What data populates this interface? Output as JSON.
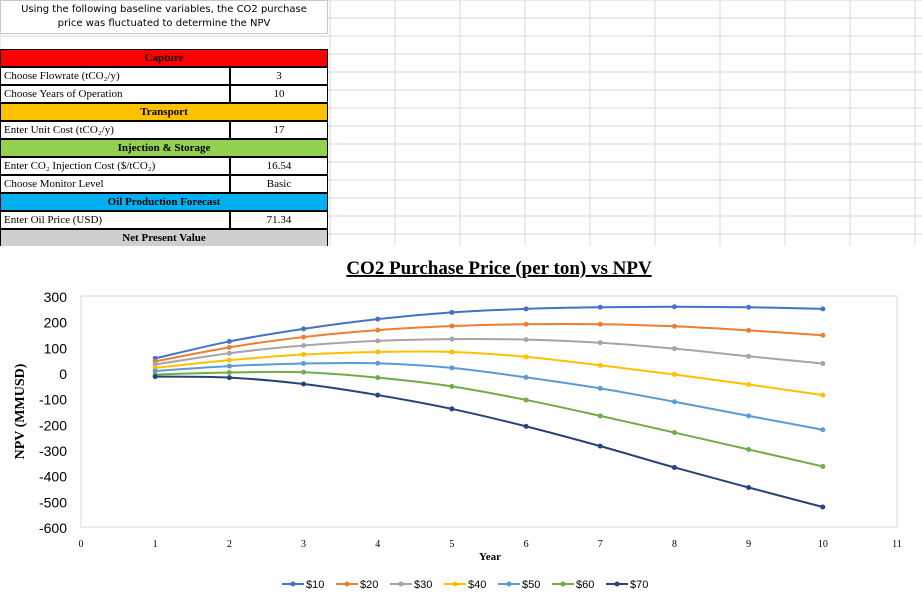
{
  "note": {
    "line1": "Using the following baseline variables, the CO2 purchase",
    "line2": "price was fluctuated to determine the NPV"
  },
  "table": {
    "capture": {
      "header": "Capture",
      "color": "#ff0000",
      "rows": [
        {
          "label": "Choose Flowrate (tCO₂/y)",
          "value": "3"
        },
        {
          "label": "Choose Years of Operation",
          "value": "10"
        }
      ]
    },
    "transport": {
      "header": "Transport",
      "color": "#ffc000",
      "rows": [
        {
          "label": "Enter Unit Cost (tCO₂/y)",
          "value": "17"
        }
      ]
    },
    "injection": {
      "header": "Injection & Storage",
      "color": "#92d050",
      "rows": [
        {
          "label": "Enter CO₂ Injection Cost ($/tCO₂)",
          "value": "16.54"
        },
        {
          "label": "Choose Monitor Level",
          "value": "Basic"
        }
      ]
    },
    "oil": {
      "header": "Oil Production Forecast",
      "color": "#00b0f0",
      "rows": [
        {
          "label": "Enter Oil Price (USD)",
          "value": "71.34"
        }
      ]
    },
    "npv": {
      "header": "Net Present Value",
      "color": "#d0cece"
    }
  },
  "chart_data": {
    "type": "line",
    "title": "CO2 Purchase Price (per ton) vs NPV",
    "xlabel": "Year",
    "ylabel": "NPV (MMUSD)",
    "xlim": [
      0,
      11
    ],
    "ylim": [
      -600,
      300
    ],
    "xticks": [
      0,
      1,
      2,
      3,
      4,
      5,
      6,
      7,
      8,
      9,
      10,
      11
    ],
    "yticks": [
      300,
      200,
      100,
      0,
      -100,
      -200,
      -300,
      -400,
      -500,
      -600
    ],
    "legend_position": "bottom",
    "x": [
      1,
      2,
      3,
      4,
      5,
      6,
      7,
      8,
      9,
      10
    ],
    "series": [
      {
        "name": "$10",
        "color": "#4472c4",
        "values": [
          57,
          123,
          172,
          210,
          236,
          250,
          256,
          258,
          256,
          250
        ]
      },
      {
        "name": "$20",
        "color": "#ed7d31",
        "values": [
          45,
          100,
          140,
          167,
          183,
          190,
          190,
          182,
          166,
          147
        ]
      },
      {
        "name": "$30",
        "color": "#a5a5a5",
        "values": [
          33,
          77,
          107,
          125,
          132,
          130,
          118,
          95,
          65,
          37
        ]
      },
      {
        "name": "$40",
        "color": "#ffc000",
        "values": [
          20,
          50,
          72,
          82,
          82,
          63,
          30,
          -6,
          -45,
          -86
        ]
      },
      {
        "name": "$50",
        "color": "#5b9bd5",
        "values": [
          8,
          27,
          37,
          38,
          20,
          -17,
          -60,
          -112,
          -167,
          -221
        ]
      },
      {
        "name": "$60",
        "color": "#70ad47",
        "values": [
          -6,
          2,
          3,
          -18,
          -52,
          -105,
          -167,
          -232,
          -298,
          -364
        ]
      },
      {
        "name": "$70",
        "color": "#264478",
        "values": [
          -14,
          -18,
          -43,
          -86,
          -140,
          -208,
          -285,
          -368,
          -446,
          -522
        ]
      }
    ]
  }
}
